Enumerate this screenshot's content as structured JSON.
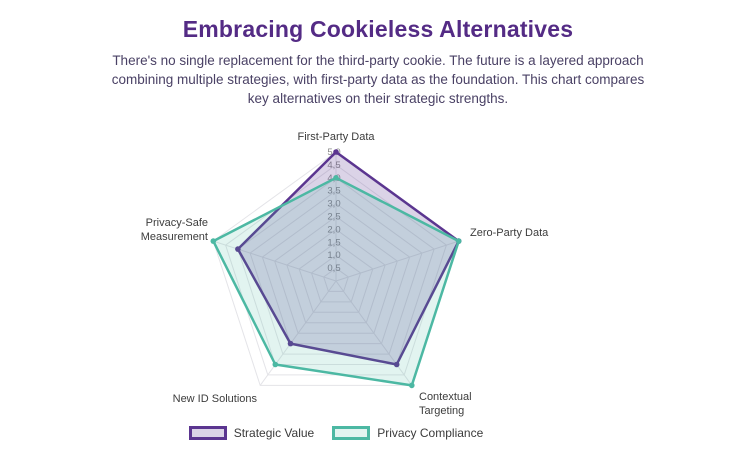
{
  "page": {
    "title": "Embracing Cookieless Alternatives",
    "subtitle": "There's no single replacement for the third-party cookie. The future is a layered approach combining multiple strategies, with first-party data as the foundation. This chart compares key alternatives on their strategic strengths."
  },
  "colors": {
    "title_color": "#542b85",
    "subtitle_color": "#4a4165",
    "axis_text": "#3c3c3c",
    "tick_text": "#8a8a8a",
    "grid": "#e4e4e8",
    "legend_text": "#3a3a3a"
  },
  "chart_data": {
    "type": "radar",
    "categories": [
      "First-Party Data",
      "Zero-Party Data",
      "Contextual Targeting",
      "New ID Solutions",
      "Privacy-Safe Measurement"
    ],
    "series": [
      {
        "name": "Strategic Value",
        "values": [
          5,
          5,
          4,
          3,
          4
        ],
        "stroke": "#5b3590",
        "fill": "rgba(91,53,144,0.22)"
      },
      {
        "name": "Privacy Compliance",
        "values": [
          4,
          5,
          5,
          4,
          5
        ],
        "stroke": "#4cb8a3",
        "fill": "rgba(77,184,163,0.16)"
      }
    ],
    "scale": {
      "min": 0,
      "max": 5,
      "step": 0.5,
      "ticks": [
        "0,5",
        "1,0",
        "1,5",
        "2,0",
        "2,5",
        "3,0",
        "3,5",
        "4,0",
        "4,5",
        "5,0"
      ]
    },
    "legend_position": "bottom"
  },
  "legend": {
    "items": [
      {
        "label": "Strategic Value"
      },
      {
        "label": "Privacy Compliance"
      }
    ]
  }
}
